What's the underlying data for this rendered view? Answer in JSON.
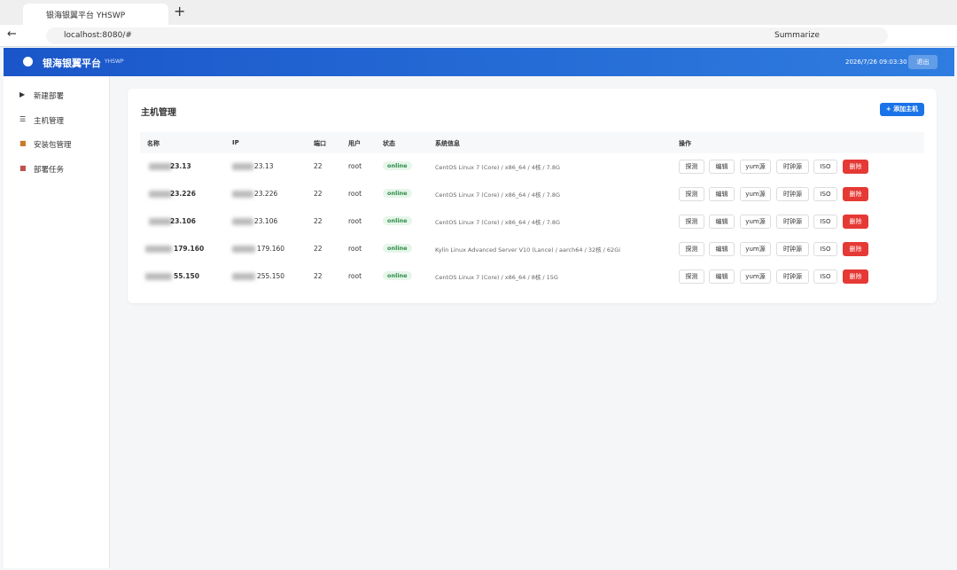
{
  "browser": {
    "tab_title": "银海银翼平台 YHSWP",
    "url": "localhost:8080/#",
    "summarize": "Summarize"
  },
  "header": {
    "title": "银海银翼平台",
    "subtitle": "YHSWP",
    "datetime": "2026/7/26 09:03:30",
    "logout": "退出"
  },
  "sidebar": {
    "items": [
      "新建部署",
      "主机管理",
      "安装包管理",
      "部署任务"
    ]
  },
  "card": {
    "title": "主机管理",
    "add_button": "+ 添加主机"
  },
  "table": {
    "columns": [
      "名称",
      "IP",
      "端口",
      "用户",
      "状态",
      "系统信息",
      "操作"
    ],
    "actions": [
      "探测",
      "编辑",
      "yum源",
      "时钟源",
      "ISO",
      "删除"
    ],
    "rows": [
      [
        "23.13",
        "23.13",
        22,
        "root",
        "online",
        "CentOS Linux 7 (Core) / x86_64 / 4核 / 7.8G"
      ],
      [
        "23.226",
        "23.226",
        22,
        "root",
        "online",
        "CentOS Linux 7 (Core) / x86_64 / 4核 / 7.8G"
      ],
      [
        "23.106",
        "23.106",
        22,
        "root",
        "online",
        "CentOS Linux 7 (Core) / x86_64 / 4核 / 7.8G"
      ],
      [
        "179.160",
        "179.160",
        22,
        "root",
        "online",
        "Kylin Linux Advanced Server V10 (Lance) / aarch64 / 32核 / 62Gi"
      ],
      [
        "55.150",
        "255.150",
        22,
        "root",
        "online",
        "CentOS Linux 7 (Core) / x86_64 / 8核 / 15G"
      ]
    ]
  }
}
